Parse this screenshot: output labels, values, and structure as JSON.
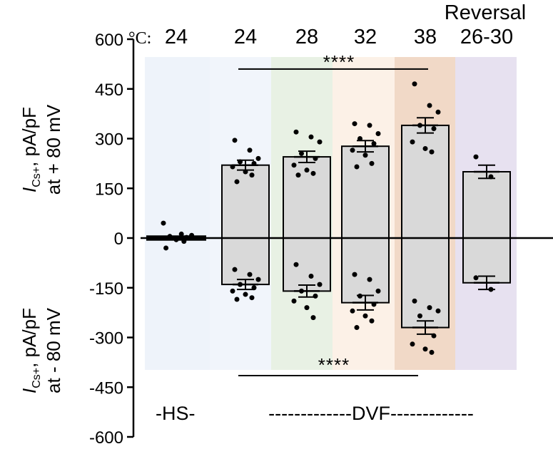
{
  "chart_data": {
    "type": "bar",
    "temperature_unit": "°C:",
    "categories": [
      "24",
      "24",
      "28",
      "32",
      "38",
      "26-30"
    ],
    "category_header_top": [
      "",
      "",
      "",
      "",
      "",
      "Reversal"
    ],
    "groups": {
      "hs": "-HS-",
      "dvf": "-------------DVF-------------"
    },
    "ylabel_top": {
      "main": "I",
      "sub": "Cs+",
      "rest": ", pA/pF",
      "line2": "at + 80 mV"
    },
    "ylabel_bottom": {
      "main": "I",
      "sub": "Cs+",
      "rest": ", pA/pF",
      "line2": "at - 80 mV"
    },
    "ylim": [
      -600,
      600
    ],
    "yticks": [
      "600",
      "450",
      "300",
      "150",
      "0",
      "-150",
      "-300",
      "-450",
      "-600"
    ],
    "band_colors": [
      "#eef3fa",
      "#f1f5fb",
      "#e8f1e4",
      "#fcf1e7",
      "#f1d9c7",
      "#e7e1f0"
    ],
    "bar_color": "#d9d9d9",
    "series": [
      {
        "name": "at + 80 mV",
        "values": [
          5,
          220,
          245,
          277,
          340,
          200
        ],
        "sem": [
          5,
          15,
          17,
          17,
          23,
          20
        ],
        "points": [
          [
            45,
            12,
            8,
            5,
            2,
            0,
            -5,
            -10,
            -30
          ],
          [
            295,
            265,
            240,
            230,
            225,
            215,
            200,
            190,
            170
          ],
          [
            320,
            305,
            290,
            255,
            240,
            220,
            205,
            195,
            190
          ],
          [
            345,
            340,
            315,
            300,
            285,
            265,
            250,
            225,
            215
          ],
          [
            465,
            400,
            380,
            340,
            330,
            290,
            270,
            260
          ],
          [
            245,
            185
          ]
        ]
      },
      {
        "name": "at - 80 mV",
        "values": [
          0,
          -140,
          -160,
          -195,
          -270,
          -135
        ],
        "sem": [
          0,
          15,
          18,
          22,
          20,
          20
        ],
        "points": [
          [],
          [
            -95,
            -110,
            -125,
            -140,
            -150,
            -160,
            -170,
            -180,
            -185
          ],
          [
            -80,
            -115,
            -140,
            -160,
            -175,
            -190,
            -210,
            -240
          ],
          [
            -110,
            -125,
            -160,
            -175,
            -200,
            -220,
            -235,
            -250,
            -270
          ],
          [
            -190,
            -210,
            -220,
            -235,
            -295,
            -320,
            -335,
            -345
          ],
          [
            -120,
            -155
          ]
        ]
      }
    ],
    "significance": [
      {
        "label": "****",
        "from": 1,
        "to": 4,
        "y": 510
      },
      {
        "label": "****",
        "from": 1,
        "to": 4,
        "y": -415
      }
    ]
  }
}
